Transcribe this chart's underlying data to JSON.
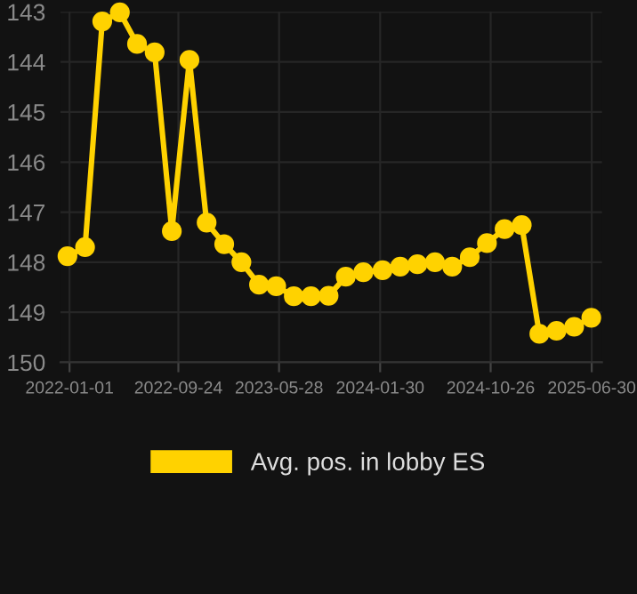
{
  "chart_data": {
    "type": "line",
    "x": [
      "2021-12-27",
      "2022-02-08",
      "2022-03-22",
      "2022-05-04",
      "2022-06-15",
      "2022-07-28",
      "2022-09-08",
      "2022-10-21",
      "2022-12-02",
      "2023-01-14",
      "2023-02-25",
      "2023-04-09",
      "2023-05-21",
      "2023-07-03",
      "2023-08-14",
      "2023-09-26",
      "2023-11-07",
      "2023-12-20",
      "2024-02-05",
      "2024-03-19",
      "2024-04-30",
      "2024-06-12",
      "2024-07-24",
      "2024-09-05",
      "2024-10-17",
      "2024-11-29",
      "2025-01-10",
      "2025-02-22",
      "2025-04-05",
      "2025-05-18",
      "2025-06-29"
    ],
    "series": [
      {
        "name": "Avg. pos. in lobby ES",
        "color": "#ffd200",
        "values": [
          147.88,
          147.7,
          143.19,
          143.01,
          143.64,
          143.81,
          147.38,
          143.96,
          147.21,
          147.64,
          148.0,
          148.45,
          148.48,
          148.68,
          148.68,
          148.67,
          148.29,
          148.2,
          148.16,
          148.09,
          148.04,
          148.0,
          148.09,
          147.9,
          147.62,
          147.34,
          147.26,
          149.43,
          149.37,
          149.29,
          149.11
        ]
      }
    ],
    "ylim": [
      150,
      143
    ],
    "yticks": [
      143,
      144,
      145,
      146,
      147,
      148,
      149,
      150
    ],
    "xlim": [
      "2021-12-10",
      "2025-07-25"
    ],
    "xticks": [
      {
        "value": "2022-01-01",
        "label": "2022-01-01"
      },
      {
        "value": "2022-09-24",
        "label": "2022-09-24"
      },
      {
        "value": "2023-05-28",
        "label": "2023-05-28"
      },
      {
        "value": "2024-01-30",
        "label": "2024-01-30"
      },
      {
        "value": "2024-10-26",
        "label": "2024-10-26"
      },
      {
        "value": "2025-06-30",
        "label": "2025-06-30"
      }
    ],
    "grid": true,
    "legend": "bottom",
    "marker": "circle",
    "line_style": "solid"
  }
}
